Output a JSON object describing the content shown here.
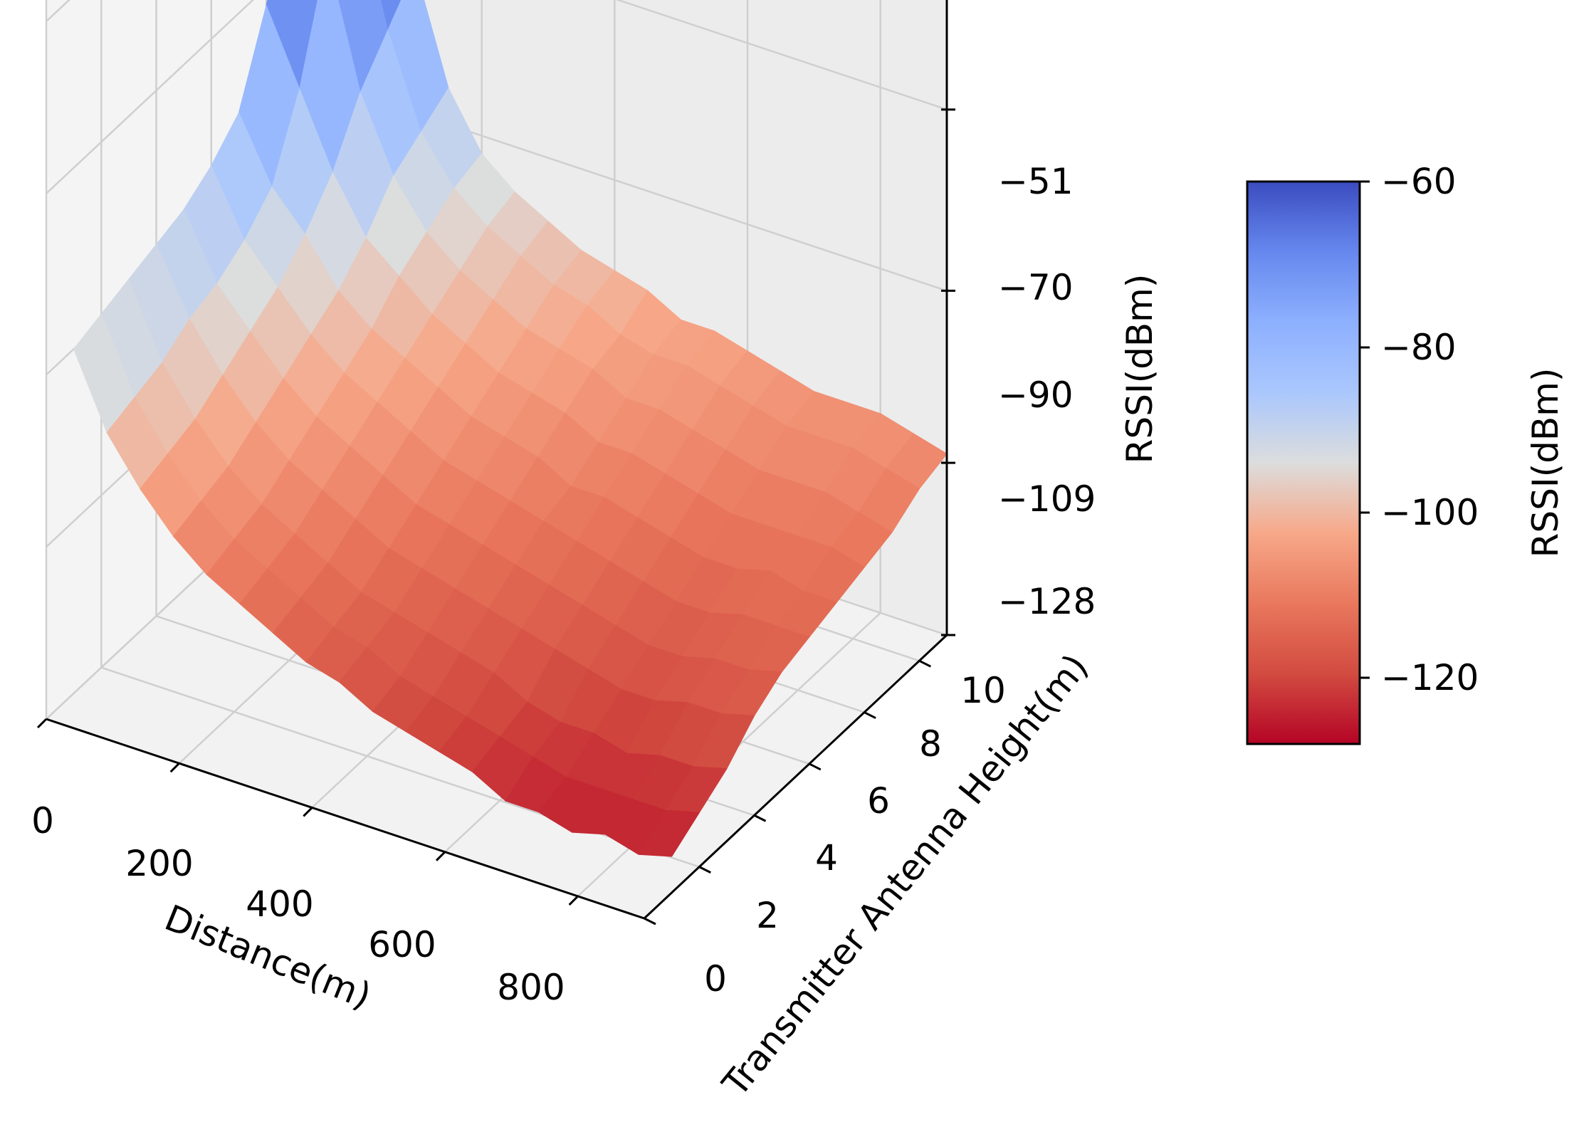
{
  "chart_data": {
    "type": "surface3d",
    "x_axis": {
      "label": "Distance(m)",
      "ticks": [
        "0",
        "200",
        "400",
        "600",
        "800"
      ],
      "range": [
        0,
        900
      ]
    },
    "y_axis": {
      "label": "Transmitter Antenna Height(m)",
      "ticks": [
        "0",
        "2",
        "4",
        "6",
        "8",
        "10"
      ],
      "range": [
        0,
        11
      ]
    },
    "z_axis": {
      "label": "RSSI(dBm)",
      "ticks": [
        "−51",
        "−70",
        "−90",
        "−109",
        "−128"
      ],
      "range": [
        -128,
        -51
      ]
    },
    "colorbar": {
      "label": "RSSI(dBm)",
      "ticks": [
        "−60",
        "−80",
        "−100",
        "−120"
      ],
      "range": [
        -128,
        -60
      ],
      "colormap": "coolwarm"
    },
    "grid": true,
    "distance": [
      0,
      50,
      100,
      150,
      200,
      250,
      300,
      350,
      400,
      450,
      500,
      550,
      600,
      650,
      700,
      750,
      800,
      850,
      900
    ],
    "height": [
      1,
      2,
      3,
      4,
      5,
      6,
      7,
      8,
      9,
      10,
      11
    ],
    "rssi": [
      [
        -90,
        -98,
        -103,
        -107,
        -110,
        -112,
        -114,
        -116,
        -117,
        -119,
        -120,
        -121,
        -122,
        -124,
        -124,
        -125,
        -124,
        -125,
        -124
      ],
      [
        -89,
        -97,
        -102,
        -106,
        -109,
        -111,
        -113,
        -115,
        -116,
        -118,
        -119,
        -120,
        -121,
        -122,
        -123,
        -123,
        -123,
        -123,
        -122
      ],
      [
        -88,
        -96,
        -101,
        -105,
        -108,
        -110,
        -112,
        -114,
        -115,
        -116,
        -117,
        -118,
        -120,
        -121,
        -121,
        -122,
        -121,
        -121,
        -120
      ],
      [
        -87,
        -94,
        -99,
        -103,
        -106,
        -108,
        -110,
        -112,
        -113,
        -114,
        -115,
        -116,
        -117,
        -118,
        -119,
        -119,
        -118,
        -118,
        -117
      ],
      [
        -86,
        -93,
        -97,
        -101,
        -104,
        -106,
        -108,
        -110,
        -111,
        -112,
        -113,
        -114,
        -115,
        -116,
        -117,
        -117,
        -116,
        -116,
        -115
      ],
      [
        -84,
        -91,
        -95,
        -99,
        -102,
        -104,
        -106,
        -108,
        -109,
        -110,
        -111,
        -112,
        -113,
        -114,
        -115,
        -115,
        -114,
        -114,
        -114
      ],
      [
        -81,
        -88,
        -92,
        -97,
        -100,
        -102,
        -104,
        -106,
        -107,
        -108,
        -110,
        -110,
        -111,
        -112,
        -113,
        -113,
        -112,
        -113,
        -113
      ],
      [
        -72,
        -80,
        -88,
        -94,
        -97,
        -100,
        -102,
        -104,
        -105,
        -106,
        -108,
        -108,
        -109,
        -110,
        -111,
        -111,
        -111,
        -111,
        -112
      ],
      [
        -62,
        -68,
        -82,
        -90,
        -95,
        -98,
        -100,
        -102,
        -103,
        -104,
        -106,
        -106,
        -107,
        -108,
        -109,
        -109,
        -109,
        -110,
        -111
      ],
      [
        -60,
        -64,
        -78,
        -88,
        -93,
        -96,
        -98,
        -100,
        -101,
        -103,
        -104,
        -104,
        -105,
        -106,
        -107,
        -107,
        -107,
        -108,
        -109
      ],
      [
        -61,
        -62,
        -74,
        -86,
        -92,
        -95,
        -97,
        -99,
        -100,
        -101,
        -103,
        -103,
        -104,
        -105,
        -106,
        -106,
        -106,
        -107,
        -108
      ]
    ]
  }
}
